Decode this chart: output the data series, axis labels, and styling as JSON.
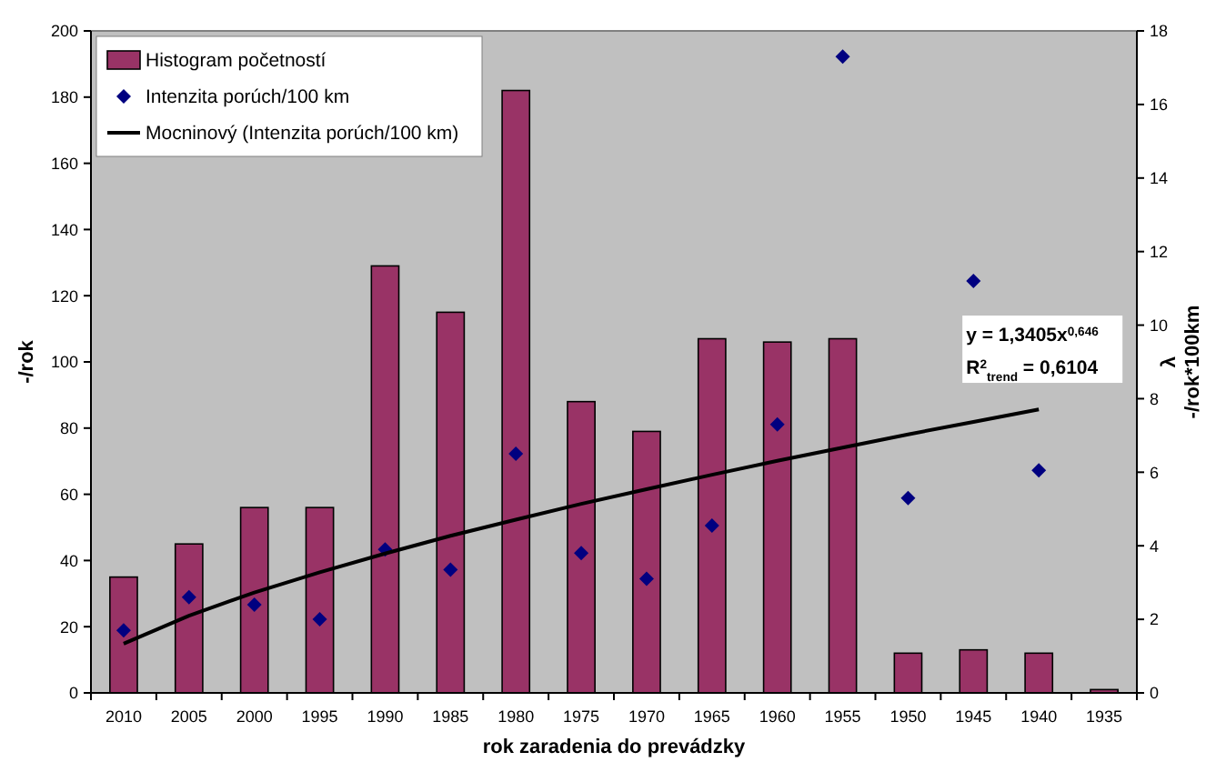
{
  "chart_data": {
    "type": "bar",
    "xlabel": "rok zaradenia do prevádzky",
    "ylabel": "-/rok",
    "y2label": "λ\n-/rok*100km",
    "categories": [
      "2010",
      "2005",
      "2000",
      "1995",
      "1990",
      "1985",
      "1980",
      "1975",
      "1970",
      "1965",
      "1960",
      "1955",
      "1950",
      "1945",
      "1940",
      "1935"
    ],
    "series": [
      {
        "name": "Histogram početností",
        "color": "#993366",
        "values": [
          35,
          45,
          56,
          56,
          129,
          115,
          182,
          88,
          79,
          107,
          106,
          107,
          12,
          13,
          12,
          1
        ]
      },
      {
        "name": "Intenzita porúch/100 km",
        "type": "scatter",
        "axis": "y2",
        "marker": "diamond",
        "color": "#000080",
        "values": [
          1.7,
          2.6,
          2.4,
          2.0,
          3.9,
          3.35,
          6.5,
          3.8,
          3.1,
          4.55,
          7.3,
          17.3,
          5.3,
          11.2,
          6.05,
          null
        ]
      },
      {
        "name": "Mocninový (Intenzita porúch/100 km)",
        "type": "line",
        "axis": "y2",
        "color": "#000000",
        "values": [
          1.34,
          2.1,
          2.73,
          3.28,
          3.79,
          4.27,
          4.71,
          5.14,
          5.54,
          5.93,
          6.31,
          6.67,
          7.03,
          7.37,
          7.71,
          null
        ]
      }
    ],
    "ylim": [
      0,
      200
    ],
    "yticks": [
      0,
      20,
      40,
      60,
      80,
      100,
      120,
      140,
      160,
      180,
      200
    ],
    "y2lim": [
      0,
      18
    ],
    "y2ticks": [
      0,
      2,
      4,
      6,
      8,
      10,
      12,
      14,
      16,
      18
    ],
    "legend": "top left",
    "grid": false,
    "annotations": [
      "y = 1,3405x$^{0,646}$",
      "R$^{2}$$_{trend}$ = 0,6104"
    ]
  }
}
